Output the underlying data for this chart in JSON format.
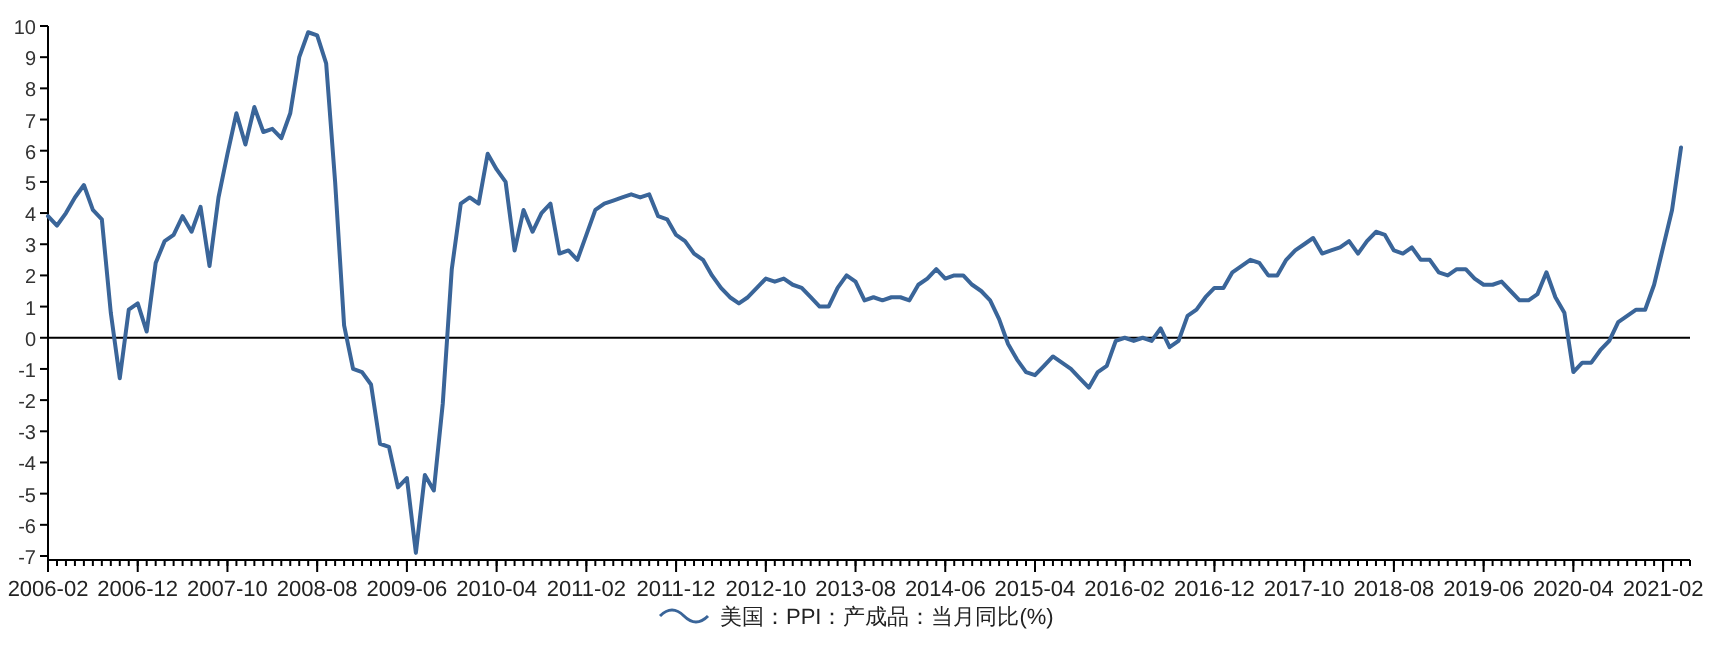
{
  "chart_data": {
    "type": "line",
    "x": [
      "2006-02",
      "2006-03",
      "2006-04",
      "2006-05",
      "2006-06",
      "2006-07",
      "2006-08",
      "2006-09",
      "2006-10",
      "2006-11",
      "2006-12",
      "2007-01",
      "2007-02",
      "2007-03",
      "2007-04",
      "2007-05",
      "2007-06",
      "2007-07",
      "2007-08",
      "2007-09",
      "2007-10",
      "2007-11",
      "2007-12",
      "2008-01",
      "2008-02",
      "2008-03",
      "2008-04",
      "2008-05",
      "2008-06",
      "2008-07",
      "2008-08",
      "2008-09",
      "2008-10",
      "2008-11",
      "2008-12",
      "2009-01",
      "2009-02",
      "2009-03",
      "2009-04",
      "2009-05",
      "2009-06",
      "2009-07",
      "2009-08",
      "2009-09",
      "2009-10",
      "2009-11",
      "2009-12",
      "2010-01",
      "2010-02",
      "2010-03",
      "2010-04",
      "2010-05",
      "2010-06",
      "2010-07",
      "2010-08",
      "2010-09",
      "2010-10",
      "2010-11",
      "2010-12",
      "2011-01",
      "2011-02",
      "2011-03",
      "2011-04",
      "2011-05",
      "2011-06",
      "2011-07",
      "2011-08",
      "2011-09",
      "2011-10",
      "2011-11",
      "2011-12",
      "2012-01",
      "2012-02",
      "2012-03",
      "2012-04",
      "2012-05",
      "2012-06",
      "2012-07",
      "2012-08",
      "2012-09",
      "2012-10",
      "2012-11",
      "2012-12",
      "2013-01",
      "2013-02",
      "2013-03",
      "2013-04",
      "2013-05",
      "2013-06",
      "2013-07",
      "2013-08",
      "2013-09",
      "2013-10",
      "2013-11",
      "2013-12",
      "2014-01",
      "2014-02",
      "2014-03",
      "2014-04",
      "2014-05",
      "2014-06",
      "2014-07",
      "2014-08",
      "2014-09",
      "2014-10",
      "2014-11",
      "2014-12",
      "2015-01",
      "2015-02",
      "2015-03",
      "2015-04",
      "2015-05",
      "2015-06",
      "2015-07",
      "2015-08",
      "2015-09",
      "2015-10",
      "2015-11",
      "2015-12",
      "2016-01",
      "2016-02",
      "2016-03",
      "2016-04",
      "2016-05",
      "2016-06",
      "2016-07",
      "2016-08",
      "2016-09",
      "2016-10",
      "2016-11",
      "2016-12",
      "2017-01",
      "2017-02",
      "2017-03",
      "2017-04",
      "2017-05",
      "2017-06",
      "2017-07",
      "2017-08",
      "2017-09",
      "2017-10",
      "2017-11",
      "2017-12",
      "2018-01",
      "2018-02",
      "2018-03",
      "2018-04",
      "2018-05",
      "2018-06",
      "2018-07",
      "2018-08",
      "2018-09",
      "2018-10",
      "2018-11",
      "2018-12",
      "2019-01",
      "2019-02",
      "2019-03",
      "2019-04",
      "2019-05",
      "2019-06",
      "2019-07",
      "2019-08",
      "2019-09",
      "2019-10",
      "2019-11",
      "2019-12",
      "2020-01",
      "2020-02",
      "2020-03",
      "2020-04",
      "2020-05",
      "2020-06",
      "2020-07",
      "2020-08",
      "2020-09",
      "2020-10",
      "2020-11",
      "2020-12",
      "2021-01",
      "2021-02",
      "2021-03",
      "2021-04"
    ],
    "series": [
      {
        "name": "美国：PPI：产成品：当月同比(%)",
        "color": "#3a6599",
        "values": [
          3.9,
          3.6,
          4.0,
          4.5,
          4.9,
          4.1,
          3.8,
          0.8,
          -1.3,
          0.9,
          1.1,
          0.2,
          2.4,
          3.1,
          3.3,
          3.9,
          3.4,
          4.2,
          2.3,
          4.5,
          5.9,
          7.2,
          6.2,
          7.4,
          6.6,
          6.7,
          6.4,
          7.2,
          9.0,
          9.8,
          9.7,
          8.8,
          5.0,
          0.4,
          -1.0,
          -1.1,
          -1.5,
          -3.4,
          -3.5,
          -4.8,
          -4.5,
          -6.9,
          -4.4,
          -4.9,
          -2.1,
          2.2,
          4.3,
          4.5,
          4.3,
          5.9,
          5.4,
          5.0,
          2.8,
          4.1,
          3.4,
          4.0,
          4.3,
          2.7,
          2.8,
          2.5,
          3.3,
          4.1,
          4.3,
          4.4,
          4.5,
          4.6,
          4.5,
          4.6,
          3.9,
          3.8,
          3.3,
          3.1,
          2.7,
          2.5,
          2.0,
          1.6,
          1.3,
          1.1,
          1.3,
          1.6,
          1.9,
          1.8,
          1.9,
          1.7,
          1.6,
          1.3,
          1.0,
          1.0,
          1.6,
          2.0,
          1.8,
          1.2,
          1.3,
          1.2,
          1.3,
          1.3,
          1.2,
          1.7,
          1.9,
          2.2,
          1.9,
          2.0,
          2.0,
          1.7,
          1.5,
          1.2,
          0.6,
          -0.2,
          -0.7,
          -1.1,
          -1.2,
          -0.9,
          -0.6,
          -0.8,
          -1.0,
          -1.3,
          -1.6,
          -1.1,
          -0.9,
          -0.1,
          0.0,
          -0.1,
          0.0,
          -0.1,
          0.3,
          -0.3,
          -0.1,
          0.7,
          0.9,
          1.3,
          1.6,
          1.6,
          2.1,
          2.3,
          2.5,
          2.4,
          2.0,
          2.0,
          2.5,
          2.8,
          3.0,
          3.2,
          2.7,
          2.8,
          2.9,
          3.1,
          2.7,
          3.1,
          3.4,
          3.3,
          2.8,
          2.7,
          2.9,
          2.5,
          2.5,
          2.1,
          2.0,
          2.2,
          2.2,
          1.9,
          1.7,
          1.7,
          1.8,
          1.5,
          1.2,
          1.2,
          1.4,
          2.1,
          1.3,
          0.8,
          -1.1,
          -0.8,
          -0.8,
          -0.4,
          -0.1,
          0.5,
          0.7,
          0.9,
          0.9,
          1.7,
          2.9,
          4.1,
          6.1
        ]
      }
    ],
    "xlim": [
      "2006-02",
      "2021-05"
    ],
    "xticks": [
      "2006-02",
      "2006-12",
      "2007-10",
      "2008-08",
      "2009-06",
      "2010-04",
      "2011-02",
      "2011-12",
      "2012-10",
      "2013-08",
      "2014-06",
      "2015-04",
      "2016-02",
      "2016-12",
      "2017-10",
      "2018-08",
      "2019-06",
      "2020-04",
      "2021-02"
    ],
    "ylim": [
      -7,
      10
    ],
    "yticks": [
      -7,
      -6,
      -5,
      -4,
      -3,
      -2,
      -1,
      0,
      1,
      2,
      3,
      4,
      5,
      6,
      7,
      8,
      9,
      10
    ],
    "ref_lines": [
      {
        "axis": "y",
        "value": 0,
        "color": "#000000"
      }
    ],
    "grid": false,
    "legend": "bottom",
    "marker": "none",
    "line_style": "solid"
  }
}
